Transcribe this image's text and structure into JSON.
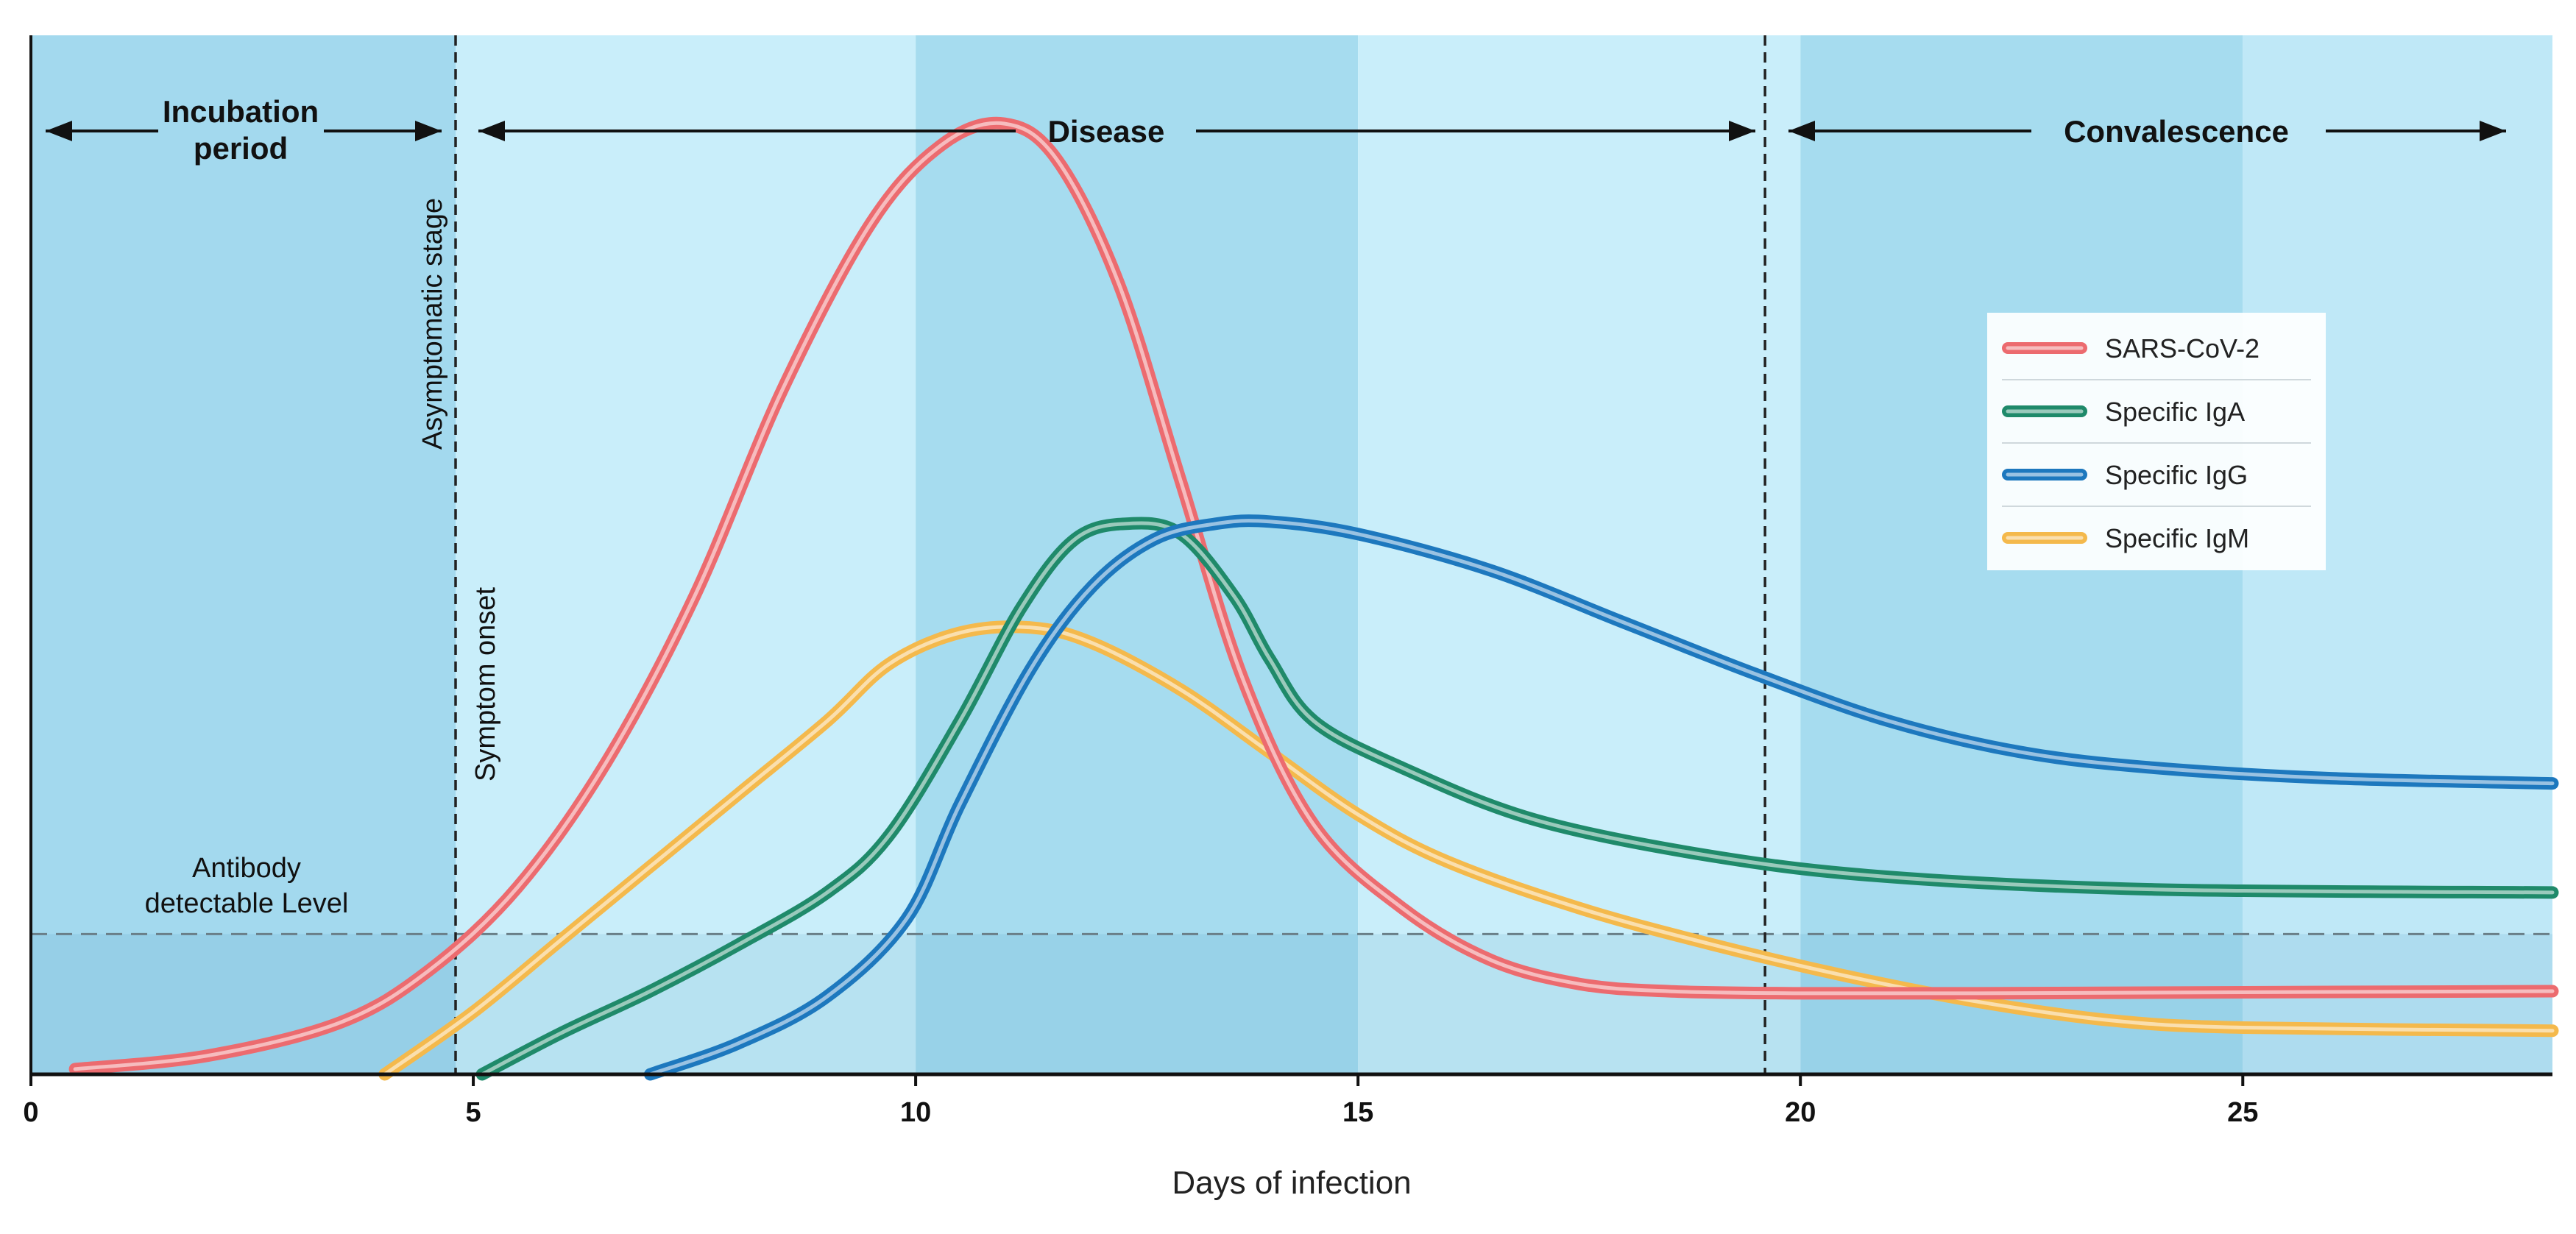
{
  "chart_data": {
    "type": "line",
    "title": "",
    "xlabel": "Days of infection",
    "ylabel": "",
    "xlim": [
      0,
      28.5
    ],
    "ylim": [
      0,
      100
    ],
    "xticks": [
      0,
      5,
      10,
      15,
      20,
      25
    ],
    "phases": [
      {
        "label_lines": [
          "Incubation",
          "period"
        ],
        "start": 0,
        "end": 4.8
      },
      {
        "label_lines": [
          "Disease"
        ],
        "start": 4.8,
        "end": 19.6
      },
      {
        "label_lines": [
          "Convalescence"
        ],
        "start": 19.6,
        "end": 28.5
      }
    ],
    "dividers": [
      4.8,
      19.6
    ],
    "annotations": {
      "asymptomatic": "Asymptomatic stage",
      "symptom_onset": "Symptom onset",
      "threshold_lines": [
        "Antibody",
        "detectable Level"
      ],
      "threshold_value": 13.5
    },
    "legend_position": "right",
    "series": [
      {
        "name": "SARS-CoV-2",
        "color": "#ec6b6f",
        "x": [
          0.5,
          2,
          3.5,
          4.5,
          5.5,
          6.5,
          7.5,
          8.5,
          9.5,
          10.3,
          11,
          11.6,
          12.3,
          13,
          13.7,
          14.5,
          15.5,
          16.5,
          17.5,
          18.5,
          20,
          22,
          25,
          28.5
        ],
        "y": [
          0.5,
          1.8,
          5,
          10,
          18,
          30,
          46,
          66,
          82,
          89.5,
          91.5,
          88,
          76,
          57,
          38,
          24,
          16,
          11,
          8.7,
          8,
          7.8,
          7.8,
          7.9,
          8
        ]
      },
      {
        "name": "Specific IgA",
        "color": "#1f8a6a",
        "x": [
          5.1,
          6,
          7,
          8,
          9,
          9.7,
          10.5,
          11.2,
          11.8,
          12.4,
          13,
          13.6,
          14,
          14.5,
          15.5,
          17,
          19,
          21,
          24,
          28.5
        ],
        "y": [
          0,
          4,
          8,
          12.5,
          17.5,
          23,
          34,
          45,
          51.5,
          53,
          52,
          46,
          40,
          34,
          29.5,
          24.5,
          21,
          19,
          17.8,
          17.5
        ]
      },
      {
        "name": "Specific IgG",
        "color": "#1d78be",
        "x": [
          7,
          8,
          9,
          9.9,
          10.5,
          11.3,
          12,
          12.7,
          13.4,
          14,
          15,
          16.5,
          18,
          19.5,
          21,
          22.5,
          24,
          26,
          28.5
        ],
        "y": [
          0,
          3,
          7.5,
          15,
          26,
          39,
          47,
          51.5,
          53,
          53.2,
          52,
          48.5,
          43.5,
          38.5,
          34,
          31,
          29.5,
          28.5,
          28
        ]
      },
      {
        "name": "Specific IgM",
        "color": "#f4b94c",
        "x": [
          4,
          5,
          6,
          7,
          8,
          9,
          9.7,
          10.5,
          11.3,
          12,
          13,
          14,
          15,
          16,
          17.5,
          19,
          20.5,
          22,
          23.5,
          25,
          28.5
        ],
        "y": [
          0,
          6,
          13,
          20,
          27,
          34,
          39.5,
          42.5,
          43,
          41.5,
          37,
          31,
          25,
          20.5,
          16,
          12.5,
          9.5,
          7,
          5.2,
          4.5,
          4.2
        ]
      }
    ]
  }
}
